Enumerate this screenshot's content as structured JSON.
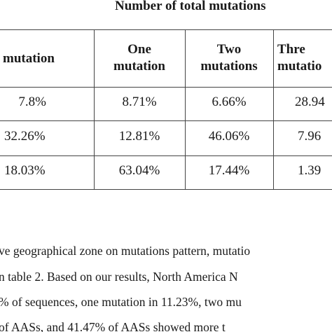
{
  "table": {
    "title": "Number of total mutations",
    "headers": [
      {
        "lines": [
          "mutation"
        ]
      },
      {
        "lines": [
          "One",
          "mutation"
        ]
      },
      {
        "lines": [
          "Two",
          "mutations"
        ]
      },
      {
        "lines": [
          "Thre",
          "mutatio"
        ]
      }
    ],
    "rows": [
      [
        "7.8%",
        "8.71%",
        "6.66%",
        "28.94"
      ],
      [
        "32.26%",
        "12.81%",
        "46.06%",
        "7.96"
      ],
      [
        "18.03%",
        "63.04%",
        "17.44%",
        "1.39"
      ]
    ]
  },
  "paragraph": {
    "lines": [
      "ve geographical zone on mutations pattern, mutatio",
      "n table 2. Based on our results, North America N",
      "% of sequences, one mutation in 11.23%, two mu",
      "of AASs, and 41.47% of AASs showed more t"
    ]
  }
}
